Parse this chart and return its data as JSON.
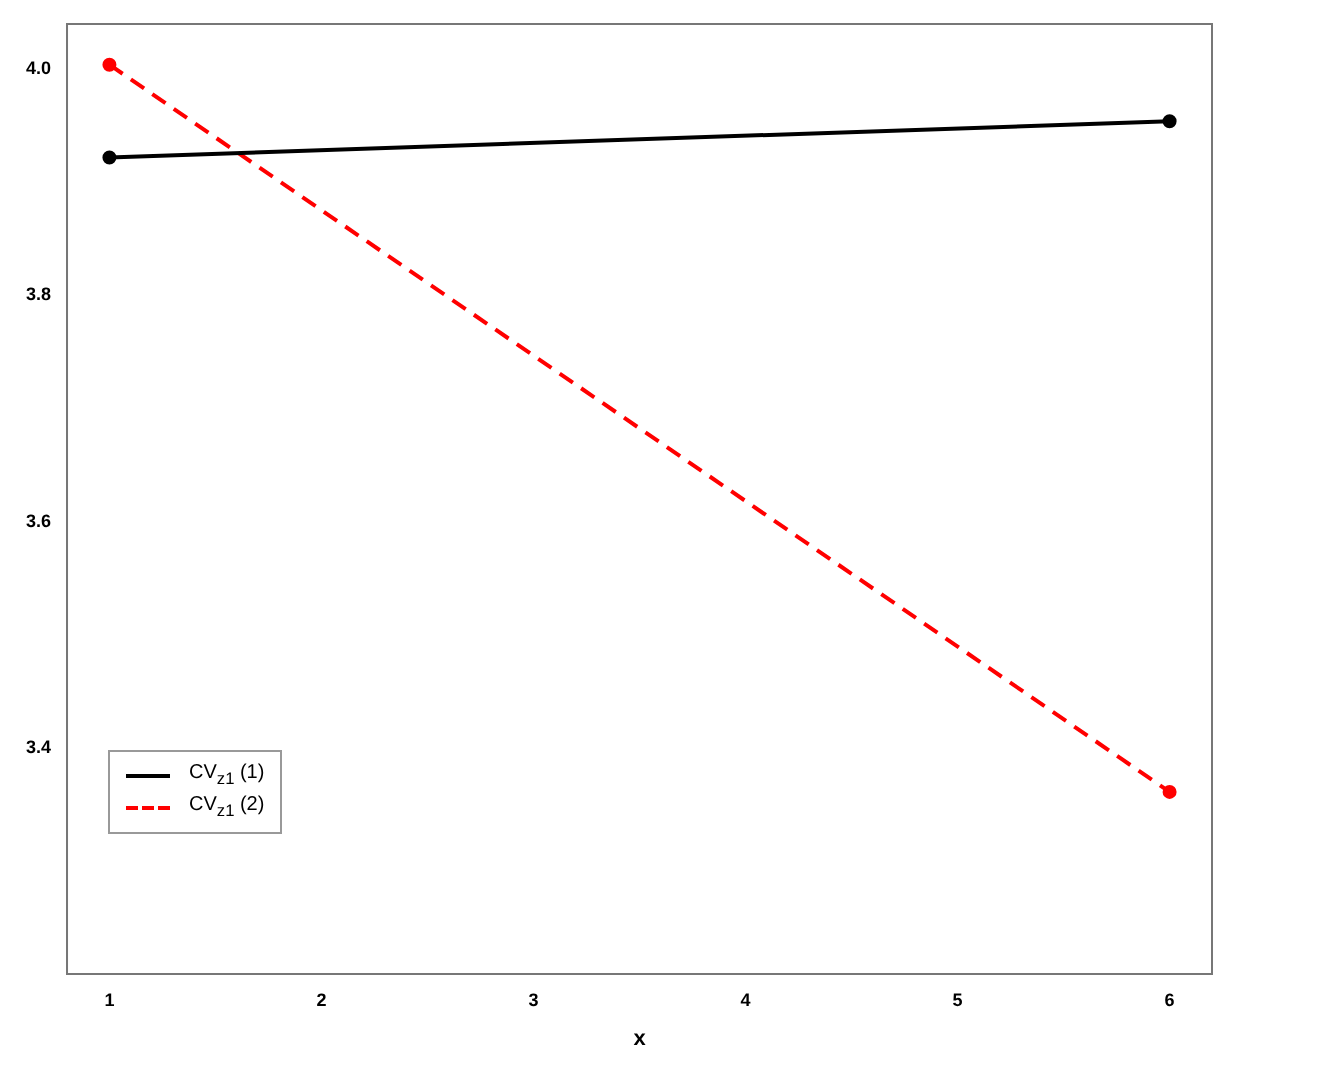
{
  "chart_data": {
    "type": "line",
    "xlabel": "x",
    "x": [
      1,
      6
    ],
    "xlim": [
      0.8,
      6.2
    ],
    "xticks": [
      1,
      2,
      3,
      4,
      5,
      6
    ],
    "ylim": [
      3.2,
      4.04
    ],
    "yticks": [
      3.4,
      3.6,
      3.8,
      {
        "value": 4,
        "label": "4.0"
      }
    ],
    "grid": false,
    "legend": "bottom left",
    "marker": "circle",
    "series": [
      {
        "name": "CV$_{z1}$ (1)",
        "color": "#000000",
        "values": [
          3.922,
          3.954
        ],
        "line_style": "solid"
      },
      {
        "name": "CV$_{z1}$ (2)",
        "color": "#ff0000",
        "values": [
          4.004,
          3.361
        ],
        "line_style": "dashed"
      }
    ]
  }
}
